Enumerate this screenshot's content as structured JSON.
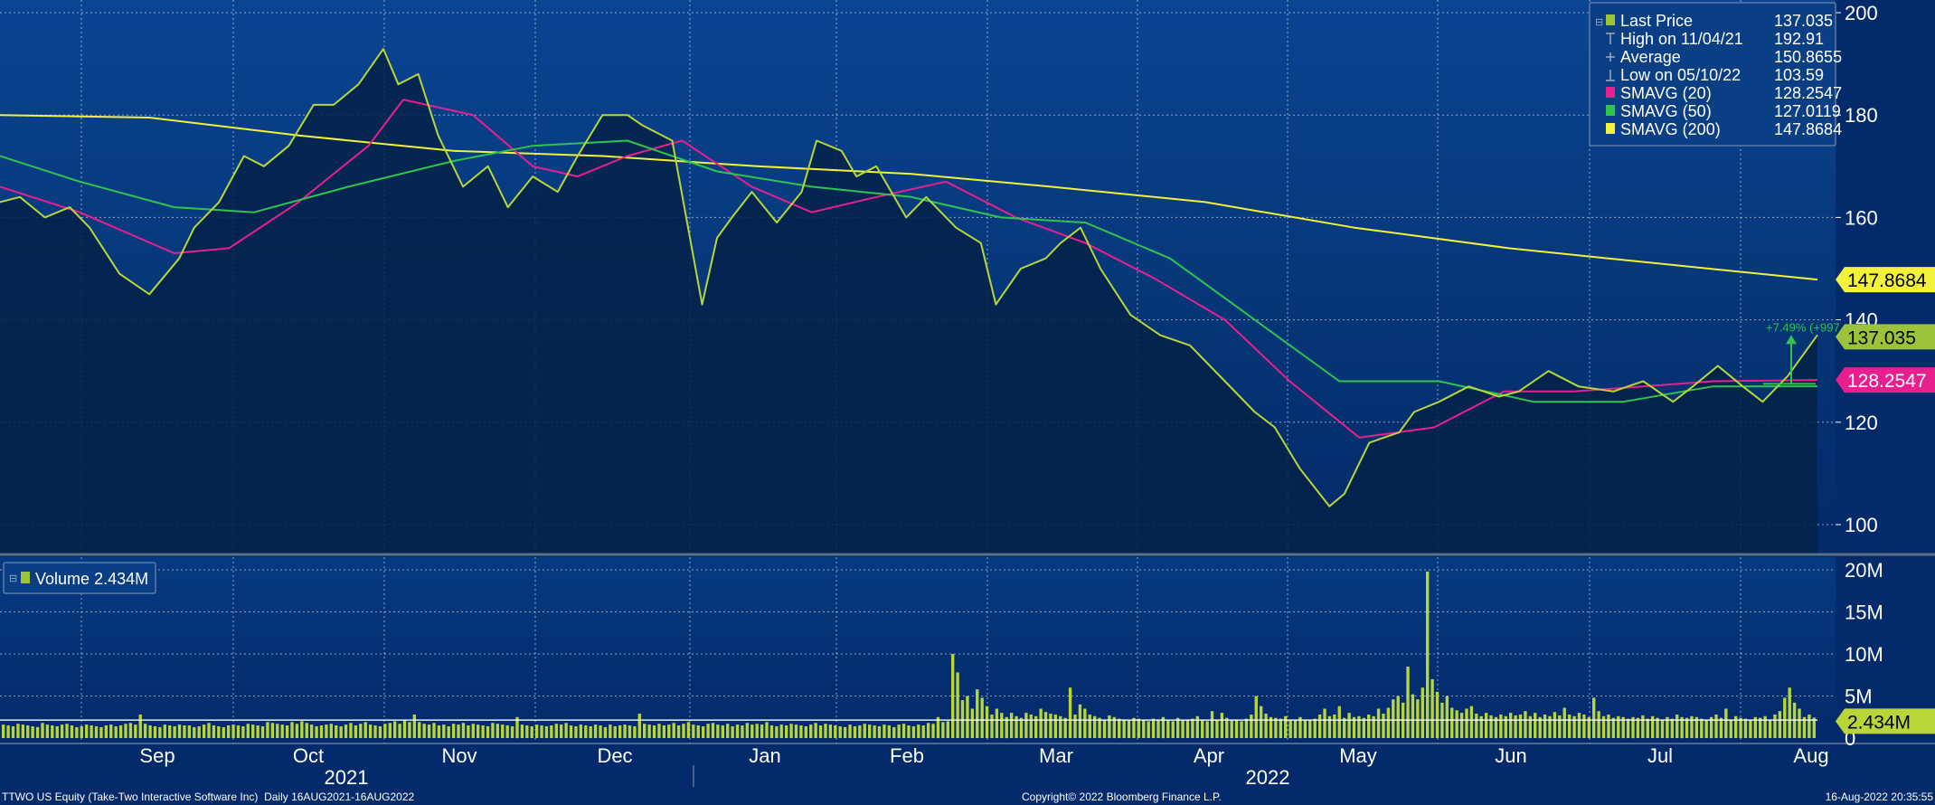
{
  "chart_data": [
    {
      "type": "line",
      "panel": "price",
      "ylim": [
        95,
        202
      ],
      "y_ticks": [
        "200",
        "180",
        "160",
        "140",
        "120",
        "100"
      ],
      "grid": true,
      "legend_position": "top-right",
      "legend": [
        {
          "label": "Last Price",
          "value": "137.035",
          "marker": "square",
          "color": "#9cc33c"
        },
        {
          "label": "High on 11/04/21",
          "value": "192.91",
          "marker": "tick-high",
          "color": "#9fa8b8"
        },
        {
          "label": "Average",
          "value": "150.8655",
          "marker": "plus",
          "color": "#9fa8b8"
        },
        {
          "label": "Low on 05/10/22",
          "value": "103.59",
          "marker": "tick-low",
          "color": "#9fa8b8"
        },
        {
          "label": "SMAVG (20)",
          "value": "128.2547",
          "marker": "square",
          "color": "#e8208f"
        },
        {
          "label": "SMAVG (50)",
          "value": "127.0119",
          "marker": "square",
          "color": "#2ec44f"
        },
        {
          "label": "SMAVG (200)",
          "value": "147.8684",
          "marker": "square",
          "color": "#f2f23a"
        }
      ],
      "series": [
        {
          "name": "Last Price",
          "color": "#b9d638",
          "x": [
            "2021-08-16",
            "2021-08-20",
            "2021-08-25",
            "2021-08-30",
            "2021-09-03",
            "2021-09-09",
            "2021-09-15",
            "2021-09-21",
            "2021-09-24",
            "2021-09-29",
            "2021-10-04",
            "2021-10-08",
            "2021-10-13",
            "2021-10-18",
            "2021-10-22",
            "2021-10-27",
            "2021-11-01",
            "2021-11-04",
            "2021-11-08",
            "2021-11-12",
            "2021-11-17",
            "2021-11-22",
            "2021-11-26",
            "2021-12-01",
            "2021-12-06",
            "2021-12-10",
            "2021-12-15",
            "2021-12-20",
            "2021-12-23",
            "2021-12-29",
            "2022-01-04",
            "2022-01-07",
            "2022-01-10",
            "2022-01-14",
            "2022-01-19",
            "2022-01-24",
            "2022-01-27",
            "2022-02-01",
            "2022-02-04",
            "2022-02-08",
            "2022-02-14",
            "2022-02-18",
            "2022-02-24",
            "2022-03-01",
            "2022-03-04",
            "2022-03-09",
            "2022-03-14",
            "2022-03-17",
            "2022-03-21",
            "2022-03-25",
            "2022-03-31",
            "2022-04-06",
            "2022-04-12",
            "2022-04-19",
            "2022-04-25",
            "2022-04-29",
            "2022-05-04",
            "2022-05-10",
            "2022-05-13",
            "2022-05-18",
            "2022-05-24",
            "2022-05-27",
            "2022-06-01",
            "2022-06-07",
            "2022-06-13",
            "2022-06-17",
            "2022-06-23",
            "2022-06-29",
            "2022-07-06",
            "2022-07-12",
            "2022-07-18",
            "2022-07-22",
            "2022-07-27",
            "2022-08-01",
            "2022-08-05",
            "2022-08-10",
            "2022-08-16"
          ],
          "y": [
            163,
            164,
            160,
            162,
            158,
            149,
            145,
            152,
            158,
            163,
            172,
            170,
            174,
            182,
            182,
            186,
            192.91,
            186,
            188,
            176,
            166,
            170,
            162,
            168,
            165,
            172,
            180,
            180,
            178,
            175,
            143,
            156,
            160,
            165,
            159,
            165,
            175,
            173,
            168,
            170,
            160,
            164,
            158,
            155,
            143,
            150,
            152,
            155,
            158,
            150,
            141,
            137,
            135,
            128,
            122,
            119,
            111,
            103.59,
            106,
            116,
            118,
            122,
            124,
            127,
            125,
            126,
            130,
            127,
            126,
            128,
            124,
            127,
            131,
            127,
            124,
            129,
            137.035
          ]
        },
        {
          "name": "SMAVG (20)",
          "color": "#e8208f",
          "x": [
            "2021-08-16",
            "2021-09-01",
            "2021-09-20",
            "2021-10-01",
            "2021-10-15",
            "2021-10-29",
            "2021-11-05",
            "2021-11-19",
            "2021-12-01",
            "2021-12-10",
            "2021-12-20",
            "2021-12-31",
            "2022-01-14",
            "2022-01-26",
            "2022-02-08",
            "2022-02-22",
            "2022-03-08",
            "2022-03-22",
            "2022-04-05",
            "2022-04-19",
            "2022-05-02",
            "2022-05-16",
            "2022-05-31",
            "2022-06-14",
            "2022-06-28",
            "2022-07-12",
            "2022-07-26",
            "2022-08-16"
          ],
          "y": [
            166,
            161,
            153,
            154,
            163,
            174,
            183,
            180,
            170,
            168,
            172,
            175,
            166,
            161,
            164,
            167,
            160,
            155,
            148,
            140,
            128,
            117,
            119,
            126,
            126,
            127,
            128,
            128.2547
          ]
        },
        {
          "name": "SMAVG (50)",
          "color": "#2ec44f",
          "x": [
            "2021-08-16",
            "2021-09-01",
            "2021-09-20",
            "2021-10-06",
            "2021-10-25",
            "2021-11-15",
            "2021-12-01",
            "2021-12-20",
            "2022-01-07",
            "2022-01-26",
            "2022-02-15",
            "2022-03-05",
            "2022-03-22",
            "2022-04-08",
            "2022-04-25",
            "2022-05-12",
            "2022-06-01",
            "2022-06-20",
            "2022-07-08",
            "2022-07-26",
            "2022-08-16"
          ],
          "y": [
            172,
            167,
            162,
            161,
            166,
            171,
            174,
            175,
            169,
            166,
            164,
            160,
            159,
            152,
            140,
            128,
            128,
            124,
            124,
            127,
            127.0119
          ]
        },
        {
          "name": "SMAVG (200)",
          "color": "#f2f23a",
          "x": [
            "2021-08-16",
            "2021-09-15",
            "2021-10-15",
            "2021-11-15",
            "2021-12-15",
            "2022-01-15",
            "2022-02-15",
            "2022-03-15",
            "2022-04-15",
            "2022-05-15",
            "2022-06-15",
            "2022-07-15",
            "2022-08-16"
          ],
          "y": [
            180,
            179.5,
            176,
            173,
            172,
            170,
            168.5,
            166,
            163,
            158,
            154,
            151,
            147.8684
          ]
        }
      ],
      "right_axis_tags": [
        {
          "label": "147.8684",
          "value": 147.8684,
          "bg": "#f2f23a",
          "fg": "#000000"
        },
        {
          "label": "137.035",
          "value": 137.035,
          "bg": "#9cc33c",
          "fg": "#000000"
        },
        {
          "label": "128.2547",
          "value": 128.2547,
          "bg": "#e8208f",
          "fg": "#ffffff"
        }
      ],
      "annotation": {
        "label": "+7.49% (+997",
        "from": 127.5,
        "to": 137.035
      }
    },
    {
      "type": "bar",
      "panel": "volume",
      "ylim": [
        0,
        20000000
      ],
      "y_ticks": [
        "20M",
        "15M",
        "10M",
        "5M",
        "0"
      ],
      "legend": [
        {
          "label": "Volume",
          "value": "2.434M",
          "color": "#9cc33c"
        }
      ],
      "current_tag": {
        "label": "2.434M",
        "value": 2434000
      },
      "values": [
        1.6,
        1.5,
        1.4,
        1.7,
        1.6,
        1.5,
        1.4,
        1.3,
        1.8,
        1.6,
        1.5,
        1.4,
        1.6,
        1.7,
        1.5,
        1.3,
        1.4,
        1.6,
        1.5,
        1.4,
        1.3,
        1.5,
        1.6,
        1.4,
        1.5,
        1.7,
        1.8,
        1.6,
        2.8,
        1.7,
        1.5,
        1.4,
        1.3,
        1.6,
        1.5,
        1.4,
        1.6,
        1.5,
        1.5,
        1.3,
        1.4,
        1.6,
        1.8,
        1.5,
        1.4,
        1.3,
        1.5,
        1.6,
        1.5,
        1.4,
        1.7,
        1.6,
        1.5,
        1.4,
        1.9,
        1.8,
        1.7,
        1.6,
        1.5,
        1.9,
        1.7,
        2.0,
        1.8,
        1.6,
        1.4,
        1.5,
        1.6,
        1.7,
        1.5,
        1.4,
        1.6,
        1.8,
        1.5,
        1.7,
        1.9,
        1.6,
        1.5,
        1.4,
        1.7,
        1.8,
        2.0,
        1.7,
        2.2,
        1.9,
        2.8,
        1.9,
        1.7,
        1.6,
        1.8,
        1.5,
        1.6,
        1.4,
        1.7,
        1.6,
        1.8,
        1.5,
        1.7,
        1.6,
        1.5,
        1.4,
        1.8,
        1.7,
        1.6,
        1.5,
        1.4,
        2.5,
        1.6,
        1.5,
        1.4,
        1.6,
        1.5,
        1.4,
        1.5,
        1.7,
        1.6,
        1.8,
        1.5,
        1.4,
        1.6,
        1.5,
        1.4,
        1.6,
        1.5,
        1.3,
        1.6,
        1.4,
        1.5,
        1.6,
        1.5,
        1.4,
        2.9,
        1.7,
        1.6,
        1.5,
        1.7,
        1.5,
        1.6,
        1.8,
        1.5,
        1.7,
        1.9,
        1.6,
        1.5,
        1.4,
        1.7,
        1.8,
        1.6,
        1.5,
        1.7,
        1.4,
        1.6,
        1.5,
        1.8,
        1.6,
        1.7,
        1.6,
        1.9,
        1.5,
        1.4,
        1.6,
        1.5,
        1.7,
        1.6,
        1.5,
        1.4,
        1.6,
        1.8,
        1.5,
        1.7,
        1.6,
        1.5,
        1.4,
        1.3,
        1.6,
        1.4,
        1.5,
        1.7,
        1.6,
        1.5,
        1.4,
        1.6,
        1.5,
        1.3,
        1.6,
        1.7,
        1.5,
        1.4,
        1.6,
        1.5,
        1.8,
        1.7,
        2.5,
        1.9,
        2.0,
        10.0,
        7.8,
        4.5,
        5.0,
        3.5,
        5.8,
        4.8,
        3.8,
        2.8,
        3.5,
        3.0,
        2.5,
        3.0,
        2.6,
        2.4,
        3.0,
        2.8,
        2.6,
        3.5,
        3.1,
        2.9,
        2.8,
        2.6,
        2.4,
        6.0,
        2.8,
        4.0,
        3.5,
        2.8,
        2.6,
        2.4,
        2.2,
        2.7,
        2.5,
        2.3,
        2.2,
        2.1,
        2.4,
        2.3,
        2.2,
        2.0,
        2.3,
        2.1,
        2.5,
        2.2,
        2.0,
        2.4,
        2.1,
        2.2,
        2.3,
        2.6,
        2.1,
        2.0,
        3.2,
        2.2,
        3.0,
        2.4,
        2.1,
        2.2,
        2.0,
        2.3,
        2.8,
        5.0,
        3.8,
        2.9,
        2.5,
        2.4,
        2.3,
        2.6,
        2.2,
        2.1,
        2.5,
        2.2,
        2.1,
        2.3,
        2.8,
        3.5,
        2.6,
        2.8,
        3.8,
        2.4,
        3.0,
        2.5,
        2.6,
        2.4,
        2.8,
        2.6,
        3.5,
        2.9,
        3.6,
        4.6,
        5.0,
        4.2,
        8.5,
        5.2,
        4.6,
        6.0,
        19.8,
        7.0,
        5.5,
        4.2,
        5.0,
        3.6,
        3.3,
        3.0,
        3.5,
        3.8,
        2.9,
        2.6,
        3.0,
        2.7,
        2.5,
        2.8,
        2.6,
        3.0,
        2.7,
        2.8,
        3.2,
        2.6,
        3.0,
        2.5,
        2.8,
        2.6,
        3.1,
        2.7,
        3.6,
        2.8,
        2.6,
        3.0,
        2.8,
        2.5,
        4.8,
        3.2,
        2.6,
        2.8,
        2.4,
        2.6,
        2.5,
        2.3,
        2.5,
        2.4,
        2.7,
        2.3,
        2.6,
        2.4,
        2.2,
        2.5,
        2.3,
        2.8,
        2.5,
        2.4,
        2.6,
        2.5,
        2.3,
        2.2,
        2.5,
        2.8,
        2.4,
        3.5,
        2.2,
        2.6,
        2.4,
        2.3,
        2.2,
        2.5,
        2.4,
        2.6,
        2.2,
        2.8,
        3.2,
        4.8,
        6.0,
        4.2,
        3.5,
        2.5,
        2.8,
        2.434
      ],
      "values_unit": "M"
    }
  ],
  "x_axis": {
    "months": [
      "Sep",
      "Oct",
      "Nov",
      "Dec",
      "Jan",
      "Feb",
      "Mar",
      "Apr",
      "May",
      "Jun",
      "Jul",
      "Aug"
    ],
    "years": [
      "2021",
      "2022"
    ]
  },
  "footer": {
    "left": "TTWO US Equity (Take-Two Interactive Software Inc)  Daily 16AUG2021-16AUG2022",
    "center": "Copyright© 2022 Bloomberg Finance L.P.",
    "right": "16-Aug-2022 20:35:55"
  },
  "colors": {
    "background": "#032a6a",
    "panel_top": "#0a4592",
    "area_fill": "#052248",
    "grid": "#ffffff",
    "separator": "#6a7a8a"
  }
}
